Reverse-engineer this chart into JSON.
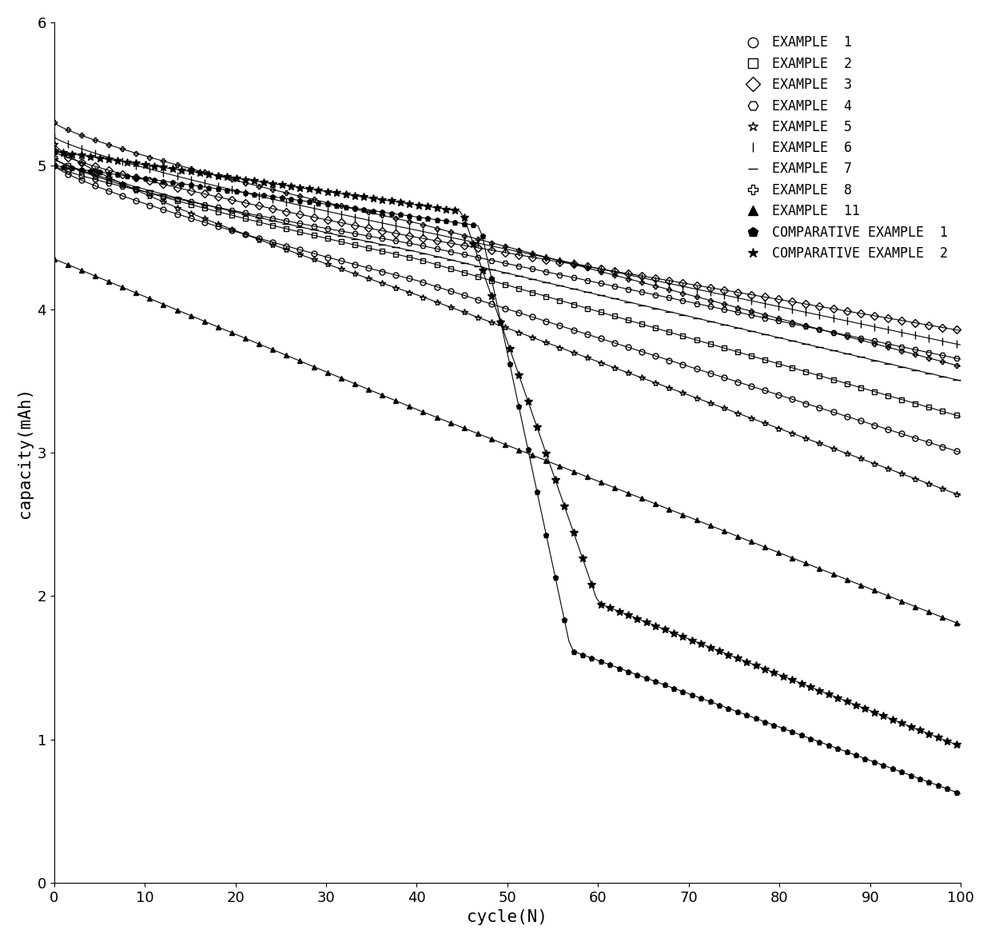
{
  "title": "",
  "xlabel": "cycle(N)",
  "ylabel": "capacity(mAh)",
  "xlim": [
    0,
    100
  ],
  "ylim": [
    0,
    6
  ],
  "xticks": [
    0,
    10,
    20,
    30,
    40,
    50,
    60,
    70,
    80,
    90,
    100
  ],
  "yticks": [
    0,
    1,
    2,
    3,
    4,
    5,
    6
  ],
  "background_color": "#ffffff",
  "fontsize_axis_label": 15,
  "fontsize_tick": 13,
  "fontsize_legend": 12,
  "series": [
    {
      "label": "EXAMPLE  1",
      "marker": "o",
      "filled": false,
      "start": 5.0,
      "mid40": 4.2,
      "end": 3.0,
      "shape": "slow_then_fast"
    },
    {
      "label": "EXAMPLE  2",
      "marker": "s",
      "filled": false,
      "start": 5.05,
      "mid40": 4.35,
      "end": 3.25,
      "shape": "slow_then_fast"
    },
    {
      "label": "EXAMPLE  3",
      "marker": "D",
      "filled": false,
      "start": 5.1,
      "mid40": 4.5,
      "end": 3.85,
      "shape": "slow_then_fast"
    },
    {
      "label": "EXAMPLE  4",
      "marker": "H",
      "filled": false,
      "start": 5.0,
      "mid40": 4.45,
      "end": 3.65,
      "shape": "slow_then_fast"
    },
    {
      "label": "EXAMPLE  5",
      "marker": "*",
      "filled": false,
      "start": 5.15,
      "mid40": 4.1,
      "end": 2.7,
      "shape": "slow_then_fast"
    },
    {
      "label": "EXAMPLE  6",
      "marker": "|",
      "filled": false,
      "start": 5.2,
      "mid40": 4.55,
      "end": 3.75,
      "shape": "slow_then_fast"
    },
    {
      "label": "EXAMPLE  7",
      "marker": "_",
      "filled": false,
      "start": 5.05,
      "mid40": 4.4,
      "end": 3.5,
      "shape": "slow_then_fast"
    },
    {
      "label": "EXAMPLE  8",
      "marker": "P",
      "filled": false,
      "start": 5.3,
      "mid40": 4.6,
      "end": 3.6,
      "shape": "slow_then_fast"
    },
    {
      "label": "EXAMPLE  11",
      "marker": "^",
      "filled": true,
      "start": 4.35,
      "mid40": 3.3,
      "end": 1.8,
      "shape": "linear_decay"
    },
    {
      "label": "COMPARATIVE EXAMPLE  1",
      "marker": "p",
      "filled": true,
      "start": 5.0,
      "drop_start": 47,
      "drop_mid": 57,
      "end": 0.62,
      "shape": "sudden_drop"
    },
    {
      "label": "COMPARATIVE EXAMPLE  2",
      "marker": "*",
      "filled": true,
      "start": 5.1,
      "drop_start": 45,
      "drop_mid": 60,
      "end": 0.95,
      "shape": "sudden_drop"
    }
  ]
}
